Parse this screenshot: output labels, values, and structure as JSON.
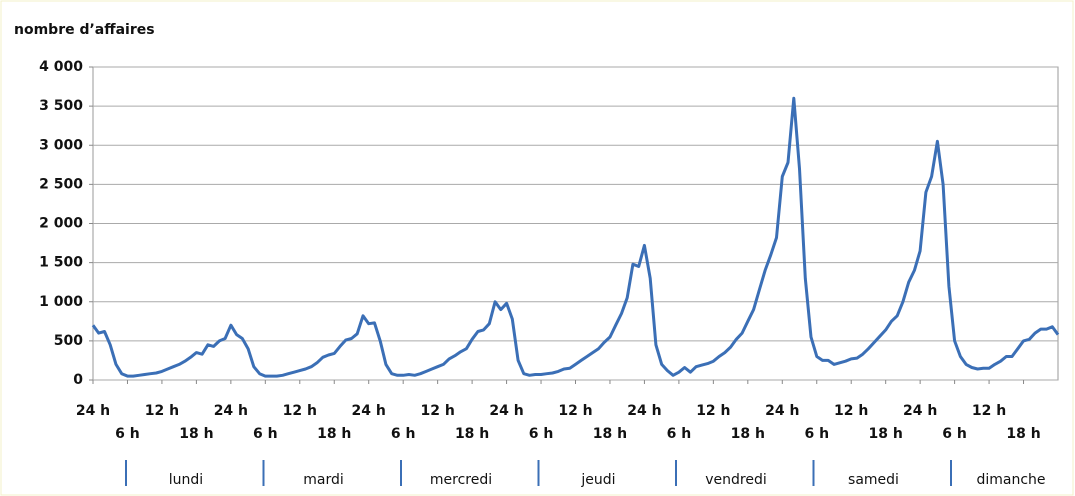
{
  "chart_data": {
    "type": "line",
    "y_axis_title": "nombre d’affaires",
    "x": [
      0,
      1,
      2,
      3,
      4,
      5,
      6,
      7,
      8,
      9,
      10,
      11,
      12,
      13,
      14,
      15,
      16,
      17,
      18,
      19,
      20,
      21,
      22,
      23,
      24,
      25,
      26,
      27,
      28,
      29,
      30,
      31,
      32,
      33,
      34,
      35,
      36,
      37,
      38,
      39,
      40,
      41,
      42,
      43,
      44,
      45,
      46,
      47,
      48,
      49,
      50,
      51,
      52,
      53,
      54,
      55,
      56,
      57,
      58,
      59,
      60,
      61,
      62,
      63,
      64,
      65,
      66,
      67,
      68,
      69,
      70,
      71,
      72,
      73,
      74,
      75,
      76,
      77,
      78,
      79,
      80,
      81,
      82,
      83,
      84,
      85,
      86,
      87,
      88,
      89,
      90,
      91,
      92,
      93,
      94,
      95,
      96,
      97,
      98,
      99,
      100,
      101,
      102,
      103,
      104,
      105,
      106,
      107,
      108,
      109,
      110,
      111,
      112,
      113,
      114,
      115,
      116,
      117,
      118,
      119,
      120,
      121,
      122,
      123,
      124,
      125,
      126,
      127,
      128,
      129,
      130,
      131,
      132,
      133,
      134,
      135,
      136,
      137,
      138,
      139,
      140,
      141,
      142,
      143,
      144,
      145,
      146,
      147,
      148,
      149,
      150,
      151,
      152,
      153,
      154,
      155,
      156,
      157,
      158,
      159,
      160,
      161,
      162,
      163,
      164,
      165,
      166,
      167,
      168
    ],
    "values": [
      700,
      600,
      620,
      450,
      200,
      80,
      50,
      50,
      60,
      70,
      80,
      90,
      110,
      140,
      170,
      200,
      240,
      290,
      350,
      330,
      450,
      430,
      500,
      530,
      700,
      580,
      530,
      400,
      170,
      80,
      50,
      50,
      50,
      60,
      80,
      100,
      120,
      140,
      170,
      220,
      290,
      320,
      340,
      430,
      510,
      530,
      590,
      820,
      720,
      730,
      500,
      200,
      80,
      60,
      60,
      70,
      60,
      80,
      110,
      140,
      170,
      200,
      270,
      310,
      360,
      400,
      520,
      620,
      640,
      720,
      1000,
      900,
      980,
      780,
      250,
      80,
      60,
      70,
      70,
      80,
      90,
      110,
      140,
      150,
      200,
      250,
      300,
      350,
      400,
      480,
      550,
      700,
      850,
      1050,
      1480,
      1450,
      1720,
      1300,
      450,
      200,
      120,
      60,
      100,
      160,
      100,
      170,
      190,
      210,
      240,
      300,
      350,
      420,
      520,
      600,
      750,
      900,
      1150,
      1400,
      1600,
      1820,
      2600,
      2780,
      3600,
      2700,
      1300,
      550,
      300,
      250,
      250,
      200,
      220,
      240,
      270,
      280,
      330,
      400,
      480,
      560,
      640,
      750,
      820,
      1000,
      1250,
      1400,
      1650,
      2400,
      2600,
      3050,
      2500,
      1200,
      500,
      300,
      200,
      160,
      140,
      150,
      150,
      200,
      240,
      300,
      300,
      400,
      500,
      520,
      600,
      650,
      650,
      680,
      580
    ],
    "color": "#3b6fb6",
    "xlim": [
      0,
      168
    ],
    "xticks": [
      {
        "value": 0,
        "label": "24 h"
      },
      {
        "value": 6,
        "label": "6 h"
      },
      {
        "value": 12,
        "label": "12 h"
      },
      {
        "value": 18,
        "label": "18 h"
      },
      {
        "value": 24,
        "label": "24 h"
      },
      {
        "value": 30,
        "label": "6 h"
      },
      {
        "value": 36,
        "label": "12 h"
      },
      {
        "value": 42,
        "label": "18 h"
      },
      {
        "value": 48,
        "label": "24 h"
      },
      {
        "value": 54,
        "label": "6 h"
      },
      {
        "value": 60,
        "label": "12 h"
      },
      {
        "value": 66,
        "label": "18 h"
      },
      {
        "value": 72,
        "label": "24 h"
      },
      {
        "value": 78,
        "label": "6 h"
      },
      {
        "value": 84,
        "label": "12 h"
      },
      {
        "value": 90,
        "label": "18 h"
      },
      {
        "value": 96,
        "label": "24 h"
      },
      {
        "value": 102,
        "label": "6 h"
      },
      {
        "value": 108,
        "label": "12 h"
      },
      {
        "value": 114,
        "label": "18 h"
      },
      {
        "value": 120,
        "label": "24 h"
      },
      {
        "value": 126,
        "label": "6 h"
      },
      {
        "value": 132,
        "label": "12 h"
      },
      {
        "value": 138,
        "label": "18 h"
      },
      {
        "value": 144,
        "label": "24 h"
      },
      {
        "value": 150,
        "label": "6 h"
      },
      {
        "value": 156,
        "label": "12 h"
      },
      {
        "value": 162,
        "label": "18 h"
      }
    ],
    "ylim": [
      0,
      4000
    ],
    "yticks": [
      0,
      500,
      {
        "value": 1000,
        "label": "1 000"
      },
      {
        "value": 1500,
        "label": "1 500"
      },
      {
        "value": 2000,
        "label": "2 000"
      },
      {
        "value": 2500,
        "label": "2 500"
      },
      {
        "value": 3000,
        "label": "3 000"
      },
      {
        "value": 3500,
        "label": "3 500"
      },
      {
        "value": 4000,
        "label": "4 000"
      }
    ],
    "grid": true,
    "days": [
      "lundi",
      "mardi",
      "mercredi",
      "jeudi",
      "vendredi",
      "samedi",
      "dimanche"
    ]
  }
}
